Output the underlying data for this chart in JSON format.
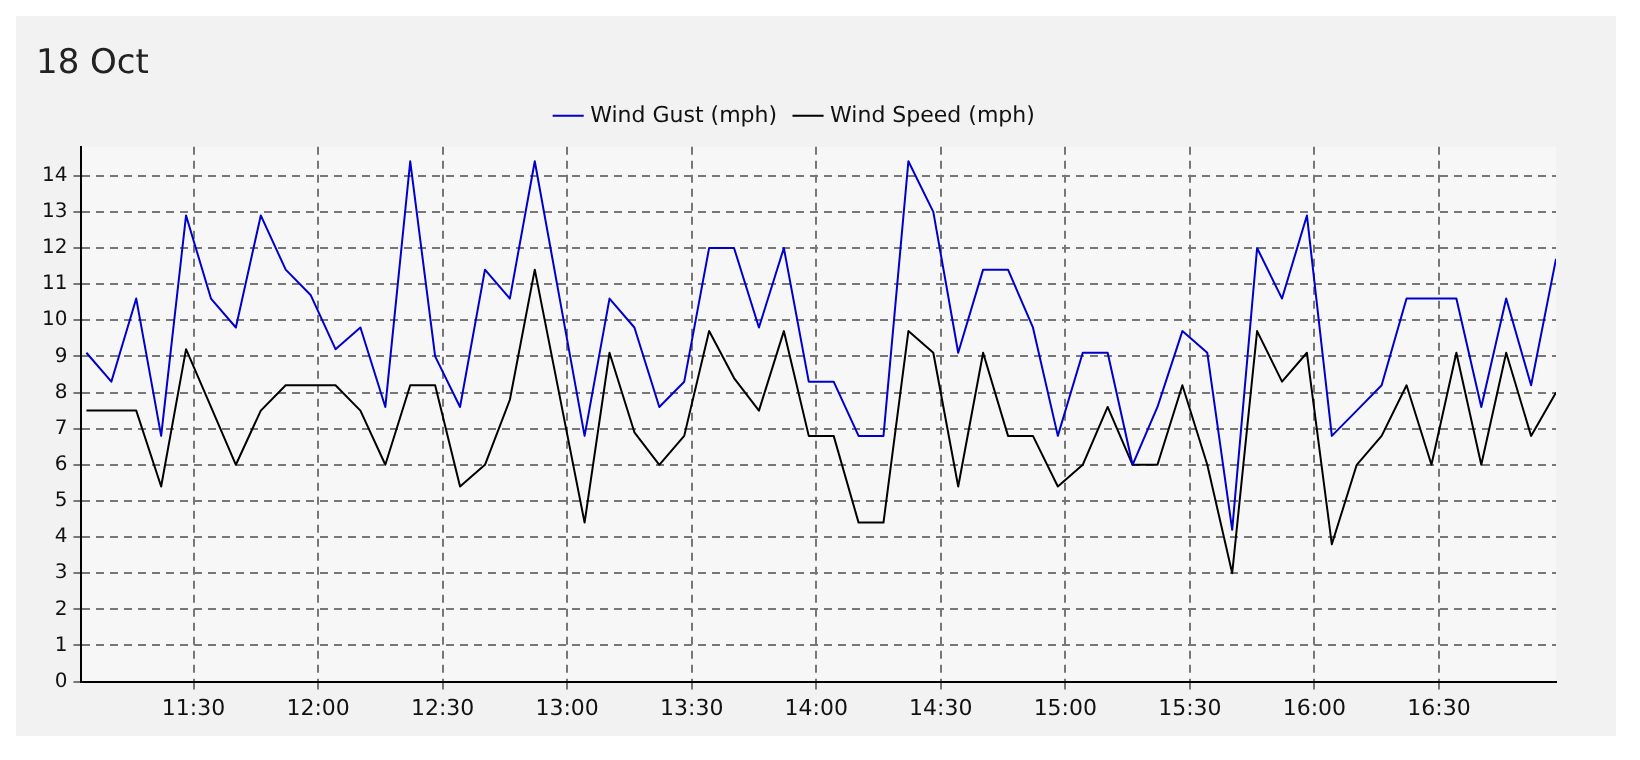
{
  "chart_data": {
    "type": "line",
    "title": "18 Oct",
    "x": [
      11.07,
      11.17,
      11.27,
      11.37,
      11.47,
      11.57,
      11.67,
      11.77,
      11.87,
      11.97,
      12.07,
      12.17,
      12.27,
      12.37,
      12.47,
      12.57,
      12.67,
      12.77,
      12.87,
      12.97,
      13.07,
      13.17,
      13.27,
      13.37,
      13.47,
      13.57,
      13.67,
      13.77,
      13.87,
      13.97,
      14.07,
      14.17,
      14.27,
      14.37,
      14.47,
      14.57,
      14.67,
      14.77,
      14.87,
      14.97,
      15.07,
      15.17,
      15.27,
      15.37,
      15.47,
      15.57,
      15.67,
      15.77,
      15.87,
      15.97,
      16.07,
      16.17,
      16.27,
      16.37,
      16.47,
      16.57,
      16.67,
      16.77,
      16.87,
      16.97
    ],
    "series": [
      {
        "name": "Wind Gust (mph)",
        "color": "#0000cc",
        "values": [
          9.1,
          8.3,
          10.6,
          6.8,
          12.9,
          10.6,
          9.8,
          12.9,
          11.4,
          10.7,
          9.2,
          9.8,
          7.6,
          14.4,
          9.0,
          7.6,
          11.4,
          10.6,
          14.4,
          10.6,
          6.8,
          10.6,
          9.8,
          7.6,
          8.3,
          12.0,
          12.0,
          9.8,
          12.0,
          8.3,
          8.3,
          6.8,
          6.8,
          14.4,
          13.0,
          9.1,
          11.4,
          11.4,
          9.8,
          6.8,
          9.1,
          9.1,
          6.0,
          7.6,
          9.7,
          9.1,
          4.2,
          12.0,
          10.6,
          12.9,
          6.8,
          7.5,
          8.2,
          10.6,
          10.6,
          10.6,
          7.6,
          10.6,
          8.2,
          11.7
        ]
      },
      {
        "name": "Wind Speed (mph)",
        "color": "#000000",
        "values": [
          7.5,
          7.5,
          7.5,
          5.4,
          9.2,
          7.6,
          6.0,
          7.5,
          8.2,
          8.2,
          8.2,
          7.5,
          6.0,
          8.2,
          8.2,
          5.4,
          6.0,
          7.8,
          11.4,
          7.9,
          4.4,
          9.1,
          6.9,
          6.0,
          6.8,
          9.7,
          8.4,
          7.5,
          9.7,
          6.8,
          6.8,
          4.4,
          4.4,
          9.7,
          9.1,
          5.4,
          9.1,
          6.8,
          6.8,
          5.4,
          6.0,
          7.6,
          6.0,
          6.0,
          8.2,
          6.0,
          3.0,
          9.7,
          8.3,
          9.1,
          3.8,
          6.0,
          6.8,
          8.2,
          6.0,
          9.1,
          6.0,
          9.1,
          6.8,
          8.0
        ]
      }
    ],
    "xlim": [
      11.05,
      16.97
    ],
    "xticks": [
      {
        "value": 11.5,
        "label": "11:30"
      },
      {
        "value": 12,
        "label": "12:00"
      },
      {
        "value": 12.5,
        "label": "12:30"
      },
      {
        "value": 13,
        "label": "13:00"
      },
      {
        "value": 13.5,
        "label": "13:30"
      },
      {
        "value": 14,
        "label": "14:00"
      },
      {
        "value": 14.5,
        "label": "14:30"
      },
      {
        "value": 15,
        "label": "15:00"
      },
      {
        "value": 15.5,
        "label": "15:30"
      },
      {
        "value": 16,
        "label": "16:00"
      },
      {
        "value": 16.5,
        "label": "16:30"
      }
    ],
    "ylim": [
      0,
      14.8
    ],
    "yticks": [
      0,
      1,
      2,
      3,
      4,
      5,
      6,
      7,
      8,
      9,
      10,
      11,
      12,
      13,
      14
    ],
    "grid": true,
    "legend": "top",
    "marker": "none",
    "line_style": "solid"
  }
}
